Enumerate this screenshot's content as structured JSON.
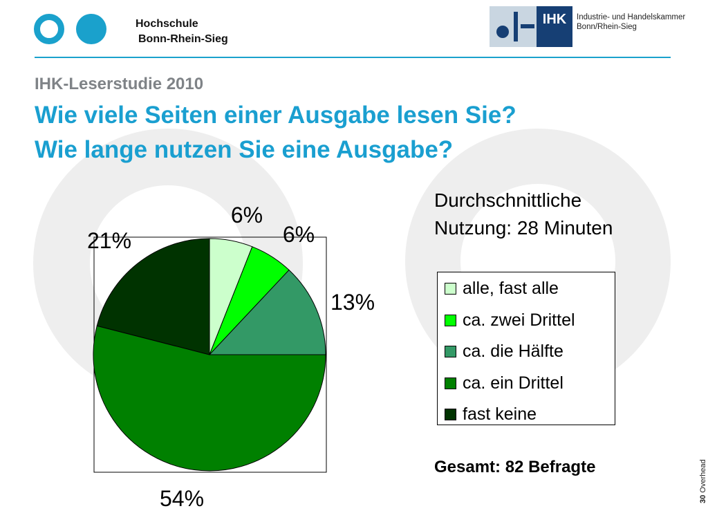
{
  "header": {
    "university_line1": "Hochschule",
    "university_line2": "Bonn-Rhein-Sieg",
    "ihk_logo_text": "IHK",
    "ihk_name_line1": "Industrie- und Handelskammer",
    "ihk_name_line2": "Bonn/Rhein-Sieg",
    "accent_color": "#1aa1cc"
  },
  "study_title": "IHK-Leserstudie 2010",
  "headline": {
    "line1": "Wie viele Seiten einer Ausgabe lesen Sie?",
    "line2": "Wie lange nutzen Sie eine Ausgabe?"
  },
  "average_usage": {
    "line1": "Durchschnittliche",
    "line2": "Nutzung: 28 Minuten"
  },
  "total": "Gesamt: 82 Befragte",
  "footer": {
    "page_number": "30",
    "label": "Overhead"
  },
  "chart_data": {
    "type": "pie",
    "title": "",
    "categories": [
      "alle, fast alle",
      "ca. zwei Drittel",
      "ca. die Hälfte",
      "ca. ein Drittel",
      "fast keine"
    ],
    "values": [
      6,
      6,
      13,
      54,
      21
    ],
    "value_labels": [
      "6%",
      "6%",
      "13%",
      "54%",
      "21%"
    ],
    "colors": [
      "#ccffcc",
      "#00ff00",
      "#339966",
      "#008000",
      "#003300"
    ],
    "start": "top, clockwise",
    "legend_position": "right"
  }
}
